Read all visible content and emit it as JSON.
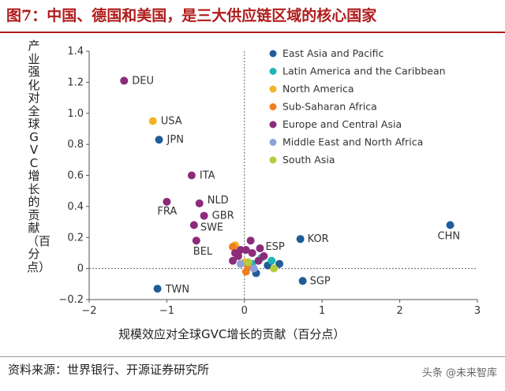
{
  "header": {
    "title": "图7：中国、德国和美国，是三大供应链区域的核心国家"
  },
  "footer": {
    "source": "资料来源：世界银行、开源证券研究所",
    "watermark": "头条 @未来智库"
  },
  "colors": {
    "title": "#b01b1b",
    "East Asia and Pacific": "#1f5c99",
    "Latin America and the Caribbean": "#1fb5b5",
    "North America": "#f5b323",
    "Sub-Saharan Africa": "#f07f1f",
    "Europe and Central Asia": "#8b2b7a",
    "Middle East and North Africa": "#8da2d9",
    "South Asia": "#b5cc3f"
  },
  "chart_data": {
    "type": "scatter",
    "title": "",
    "xlabel": "规模效应对全球GVC增长的贡献（百分点）",
    "ylabel": "产业强化对全球GVC增长的贡献（百分点）",
    "xlim": [
      -2,
      3
    ],
    "ylim": [
      -0.2,
      1.4
    ],
    "xticks": [
      "−2",
      "−1",
      "0",
      "1",
      "2",
      "3"
    ],
    "yticks": [
      "−0.2",
      "0",
      "0.2",
      "0.4",
      "0.6",
      "0.8",
      "1.0",
      "1.2",
      "1.4"
    ],
    "legend_position": "top-right",
    "series": [
      {
        "name": "East Asia and Pacific",
        "points": [
          {
            "x": -1.1,
            "y": 0.83,
            "label": "JPN"
          },
          {
            "x": 0.72,
            "y": 0.19,
            "label": "KOR"
          },
          {
            "x": 2.65,
            "y": 0.28,
            "label": "CHN"
          },
          {
            "x": -1.12,
            "y": -0.13,
            "label": "TWN"
          },
          {
            "x": 0.75,
            "y": -0.08,
            "label": "SGP"
          },
          {
            "x": 0.45,
            "y": 0.03
          },
          {
            "x": 0.15,
            "y": -0.03
          },
          {
            "x": 0.3,
            "y": 0.02
          }
        ]
      },
      {
        "name": "Latin America and the Caribbean",
        "points": [
          {
            "x": 0.35,
            "y": 0.05
          },
          {
            "x": 0.22,
            "y": 0.07
          },
          {
            "x": 0.1,
            "y": 0.03
          }
        ]
      },
      {
        "name": "North America",
        "points": [
          {
            "x": -1.18,
            "y": 0.95,
            "label": "USA"
          },
          {
            "x": -0.12,
            "y": 0.15
          },
          {
            "x": 0.0,
            "y": 0.04
          }
        ]
      },
      {
        "name": "Sub-Saharan Africa",
        "points": [
          {
            "x": -0.15,
            "y": 0.14
          },
          {
            "x": 0.05,
            "y": 0.01
          },
          {
            "x": 0.02,
            "y": -0.02
          }
        ]
      },
      {
        "name": "Europe and Central Asia",
        "points": [
          {
            "x": -1.55,
            "y": 1.21,
            "label": "DEU"
          },
          {
            "x": -0.68,
            "y": 0.6,
            "label": "ITA"
          },
          {
            "x": -0.58,
            "y": 0.42,
            "label": "NLD"
          },
          {
            "x": -1.0,
            "y": 0.43,
            "label": "FRA"
          },
          {
            "x": -0.52,
            "y": 0.34,
            "label": "GBR"
          },
          {
            "x": -0.65,
            "y": 0.28,
            "label": "SWE"
          },
          {
            "x": -0.62,
            "y": 0.18,
            "label": "BEL"
          },
          {
            "x": 0.2,
            "y": 0.13,
            "label": "ESP"
          },
          {
            "x": 0.08,
            "y": 0.18
          },
          {
            "x": -0.05,
            "y": 0.12
          },
          {
            "x": -0.15,
            "y": 0.05
          },
          {
            "x": 0.1,
            "y": 0.1
          },
          {
            "x": 0.25,
            "y": 0.08
          },
          {
            "x": -0.08,
            "y": 0.08
          },
          {
            "x": 0.02,
            "y": 0.12
          },
          {
            "x": 0.18,
            "y": 0.05
          },
          {
            "x": -0.12,
            "y": 0.1
          }
        ]
      },
      {
        "name": "Middle East and North Africa",
        "points": [
          {
            "x": 0.12,
            "y": 0.0
          },
          {
            "x": -0.05,
            "y": 0.03
          }
        ]
      },
      {
        "name": "South Asia",
        "points": [
          {
            "x": 0.38,
            "y": 0.0
          },
          {
            "x": 0.05,
            "y": 0.04
          }
        ]
      }
    ]
  }
}
